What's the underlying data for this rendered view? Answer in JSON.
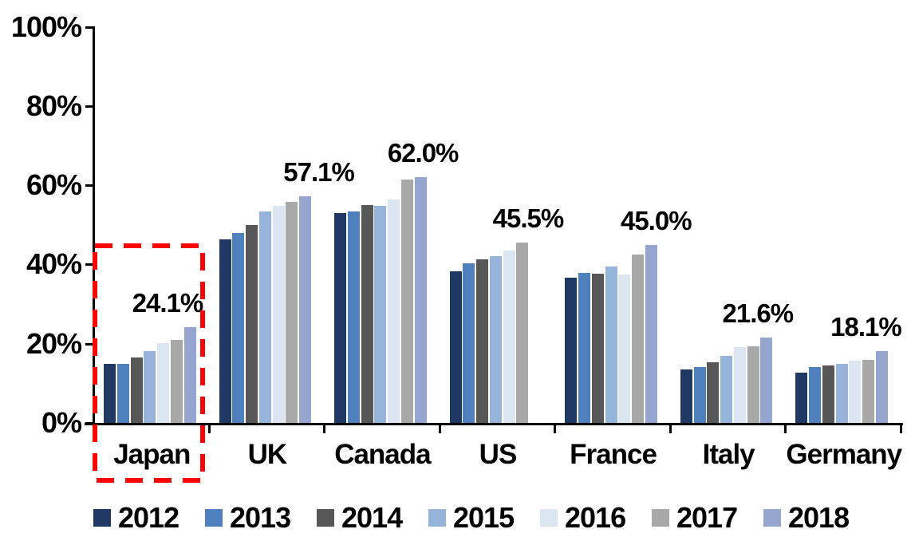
{
  "chart_data": {
    "type": "bar",
    "title": "",
    "categories": [
      "Japan",
      "UK",
      "Canada",
      "US",
      "France",
      "Italy",
      "Germany"
    ],
    "series": [
      {
        "name": "2012",
        "color": "#1f3864",
        "values": [
          14.9,
          46.3,
          53.0,
          38.3,
          36.6,
          13.4,
          12.6
        ]
      },
      {
        "name": "2013",
        "color": "#4e80be",
        "values": [
          15.0,
          47.9,
          53.4,
          40.2,
          37.8,
          14.1,
          14.1
        ]
      },
      {
        "name": "2014",
        "color": "#575757",
        "values": [
          16.6,
          49.9,
          54.9,
          41.2,
          37.7,
          15.4,
          14.6
        ]
      },
      {
        "name": "2015",
        "color": "#96b4da",
        "values": [
          18.1,
          53.3,
          54.7,
          42.1,
          39.4,
          17.0,
          14.9
        ]
      },
      {
        "name": "2016",
        "color": "#dce6f2",
        "values": [
          20.1,
          54.7,
          56.3,
          43.6,
          37.5,
          19.1,
          15.8
        ]
      },
      {
        "name": "2017",
        "color": "#a9a8a8",
        "values": [
          21.0,
          55.8,
          61.5,
          45.5,
          42.4,
          19.3,
          16.0
        ]
      },
      {
        "name": "2018",
        "color": "#95a5d0",
        "values": [
          24.1,
          57.1,
          62.0,
          null,
          45.0,
          21.6,
          18.1
        ]
      }
    ],
    "data_labels": [
      "24.1%",
      "57.1%",
      "62.0%",
      "45.5%",
      "45.0%",
      "21.6%",
      "18.1%"
    ],
    "y_axis": {
      "min": 0,
      "max": 100,
      "ticks": [
        "0%",
        "20%",
        "40%",
        "60%",
        "80%",
        "100%"
      ],
      "grid": false
    },
    "legend": {
      "position": "bottom",
      "entries": [
        "2012",
        "2013",
        "2014",
        "2015",
        "2016",
        "2017",
        "2018"
      ]
    },
    "highlight": {
      "category": "Japan",
      "style": "red-dashed-box",
      "color": "#fa0505"
    }
  }
}
